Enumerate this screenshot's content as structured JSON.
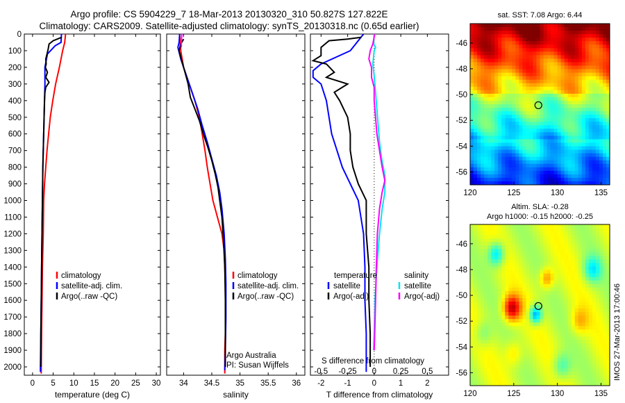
{
  "header": {
    "line1": "Argo profile: CS 5904229_7 18-Mar-2013 20130320_310 50.827S 127.822E",
    "line2": "Climatology: CARS2009. Satellite-adjusted climatology: synTS_20130318.nc (0.65d earlier)"
  },
  "side_text": "IMOS 27-Mar-2013 17:00:46",
  "colors": {
    "climatology": "#ff0000",
    "satellite": "#0000ff",
    "argo": "#000000",
    "sal_satellite": "#00e5ee",
    "sal_argo": "#ff00ff"
  },
  "chart_data": [
    {
      "type": "line",
      "xlabel": "temperature (deg C)",
      "ylabel": "",
      "xlim": [
        -2,
        31
      ],
      "ylim": [
        2050,
        0
      ],
      "xticks": [
        0,
        5,
        10,
        15,
        20,
        25,
        30
      ],
      "yticks": [
        0,
        100,
        200,
        300,
        400,
        500,
        600,
        700,
        800,
        900,
        1000,
        1100,
        1200,
        1300,
        1400,
        1500,
        1600,
        1700,
        1800,
        1900,
        2000
      ],
      "legend": [
        "climatology",
        "satellite-adj. clim.",
        "Argo(..raw -QC)"
      ],
      "series": [
        {
          "name": "climatology",
          "color": "#ff0000",
          "points": [
            [
              8.0,
              0
            ],
            [
              7.8,
              50
            ],
            [
              7.3,
              100
            ],
            [
              6.5,
              200
            ],
            [
              5.6,
              300
            ],
            [
              4.9,
              400
            ],
            [
              4.3,
              500
            ],
            [
              3.9,
              600
            ],
            [
              3.5,
              700
            ],
            [
              3.2,
              800
            ],
            [
              2.9,
              900
            ],
            [
              2.7,
              1000
            ],
            [
              2.6,
              1200
            ],
            [
              2.4,
              1400
            ],
            [
              2.3,
              1600
            ],
            [
              2.2,
              1800
            ],
            [
              2.1,
              2000
            ],
            [
              2.1,
              2040
            ]
          ]
        },
        {
          "name": "satellite-adj. clim.",
          "color": "#0000ff",
          "points": [
            [
              7.0,
              0
            ],
            [
              6.9,
              50
            ],
            [
              5.5,
              70
            ],
            [
              3.6,
              120
            ],
            [
              3.0,
              200
            ],
            [
              3.0,
              300
            ],
            [
              2.9,
              400
            ],
            [
              2.8,
              500
            ],
            [
              2.7,
              600
            ],
            [
              2.6,
              700
            ],
            [
              2.5,
              800
            ],
            [
              2.4,
              1000
            ],
            [
              2.3,
              1200
            ],
            [
              2.2,
              1400
            ],
            [
              2.1,
              1600
            ],
            [
              2.0,
              1800
            ],
            [
              1.9,
              2000
            ],
            [
              1.9,
              2030
            ]
          ]
        },
        {
          "name": "Argo(..raw -QC)",
          "color": "#000000",
          "points": [
            [
              7.0,
              20
            ],
            [
              5.0,
              40
            ],
            [
              4.0,
              60
            ],
            [
              3.8,
              90
            ],
            [
              3.5,
              120
            ],
            [
              3.2,
              150
            ],
            [
              3.3,
              180
            ],
            [
              3.1,
              200
            ],
            [
              3.6,
              230
            ],
            [
              3.2,
              260
            ],
            [
              4.0,
              290
            ],
            [
              3.2,
              320
            ],
            [
              3.0,
              350
            ],
            [
              2.9,
              400
            ],
            [
              2.8,
              500
            ],
            [
              2.7,
              600
            ],
            [
              2.6,
              700
            ],
            [
              2.5,
              800
            ],
            [
              2.4,
              1000
            ],
            [
              2.3,
              1200
            ],
            [
              2.2,
              1400
            ],
            [
              2.1,
              1600
            ],
            [
              2.0,
              1800
            ],
            [
              2.0,
              2000
            ]
          ]
        }
      ]
    },
    {
      "type": "line",
      "xlabel": "salinity",
      "ylabel": "",
      "xlim": [
        33.7,
        36.15
      ],
      "ylim": [
        2050,
        0
      ],
      "xticks": [
        34,
        34.5,
        35,
        35.5,
        36
      ],
      "legend": [
        "climatology",
        "satellite-adj. clim.",
        "Argo(..raw -QC)"
      ],
      "annotation": [
        "Argo Australia",
        "PI: Susan Wijffels"
      ],
      "series": [
        {
          "name": "climatology",
          "color": "#ff0000",
          "points": [
            [
              33.93,
              0
            ],
            [
              33.95,
              100
            ],
            [
              34.0,
              200
            ],
            [
              34.1,
              300
            ],
            [
              34.2,
              400
            ],
            [
              34.28,
              500
            ],
            [
              34.33,
              600
            ],
            [
              34.38,
              700
            ],
            [
              34.42,
              800
            ],
            [
              34.47,
              900
            ],
            [
              34.52,
              1000
            ],
            [
              34.6,
              1100
            ],
            [
              34.68,
              1200
            ],
            [
              34.72,
              1300
            ],
            [
              34.73,
              1400
            ],
            [
              34.74,
              1500
            ],
            [
              34.74,
              1600
            ],
            [
              34.74,
              1800
            ],
            [
              34.73,
              1900
            ],
            [
              34.73,
              2040
            ]
          ]
        },
        {
          "name": "satellite-adj. clim.",
          "color": "#0000ff",
          "points": [
            [
              33.93,
              0
            ],
            [
              33.92,
              50
            ],
            [
              33.9,
              80
            ],
            [
              33.95,
              150
            ],
            [
              34.05,
              250
            ],
            [
              34.15,
              350
            ],
            [
              34.25,
              450
            ],
            [
              34.33,
              550
            ],
            [
              34.42,
              650
            ],
            [
              34.5,
              750
            ],
            [
              34.58,
              850
            ],
            [
              34.64,
              950
            ],
            [
              34.68,
              1050
            ],
            [
              34.72,
              1200
            ],
            [
              34.74,
              1350
            ],
            [
              34.75,
              1500
            ],
            [
              34.75,
              1700
            ],
            [
              34.74,
              1900
            ],
            [
              34.73,
              2020
            ]
          ]
        },
        {
          "name": "Argo(..raw -QC)",
          "color": "#000000",
          "points": [
            [
              34.0,
              30
            ],
            [
              33.95,
              60
            ],
            [
              33.92,
              100
            ],
            [
              33.96,
              150
            ],
            [
              34.0,
              200
            ],
            [
              34.05,
              260
            ],
            [
              34.08,
              300
            ],
            [
              34.12,
              380
            ],
            [
              34.2,
              450
            ],
            [
              34.28,
              520
            ],
            [
              34.35,
              600
            ],
            [
              34.43,
              680
            ],
            [
              34.5,
              760
            ],
            [
              34.56,
              840
            ],
            [
              34.61,
              920
            ],
            [
              34.64,
              1000
            ],
            [
              34.68,
              1100
            ],
            [
              34.71,
              1250
            ],
            [
              34.73,
              1400
            ],
            [
              34.74,
              1600
            ],
            [
              34.74,
              1800
            ],
            [
              34.74,
              2000
            ]
          ]
        },
        {
          "name": "",
          "color": "#ff00ff",
          "points": [
            [
              33.97,
              0
            ],
            [
              33.96,
              50
            ],
            [
              33.96,
              80
            ]
          ]
        }
      ]
    },
    {
      "type": "line",
      "xlabel": "T difference from climatology",
      "x2label": "S difference from climatology",
      "xlim": [
        -2.4,
        2.8
      ],
      "ylim": [
        2050,
        0
      ],
      "xticks": [
        -2,
        -1,
        0,
        1,
        2
      ],
      "x2ticks": [
        -0.5,
        -0.25,
        0,
        0.25,
        0.5
      ],
      "legend_temperature": {
        "title": "temperature",
        "items": [
          "satellite",
          "Argo(-adj)"
        ]
      },
      "legend_salinity": {
        "title": "salinity",
        "items": [
          "satellite",
          "Argo(-adj)"
        ]
      },
      "series": [
        {
          "name": "satellite",
          "color": "#0000ff",
          "points": [
            [
              -0.4,
              0
            ],
            [
              -0.9,
              100
            ],
            [
              -2.0,
              180
            ],
            [
              -2.3,
              220
            ],
            [
              -2.3,
              260
            ],
            [
              -2.0,
              300
            ],
            [
              -1.8,
              400
            ],
            [
              -1.7,
              500
            ],
            [
              -1.6,
              600
            ],
            [
              -1.4,
              700
            ],
            [
              -1.2,
              800
            ],
            [
              -0.9,
              900
            ],
            [
              -0.6,
              1000
            ],
            [
              -0.5,
              1100
            ],
            [
              -0.4,
              1200
            ],
            [
              -0.35,
              1400
            ],
            [
              -0.35,
              1600
            ],
            [
              -0.3,
              1800
            ],
            [
              -0.3,
              2000
            ],
            [
              -0.3,
              2030
            ]
          ]
        },
        {
          "name": "Argo(-adj)",
          "color": "#000000",
          "points": [
            [
              -0.5,
              20
            ],
            [
              -1.0,
              30
            ],
            [
              -1.7,
              40
            ],
            [
              -2.0,
              80
            ],
            [
              -2.0,
              130
            ],
            [
              -2.3,
              160
            ],
            [
              -1.8,
              180
            ],
            [
              -1.5,
              230
            ],
            [
              -1.8,
              260
            ],
            [
              -1.0,
              300
            ],
            [
              -1.5,
              350
            ],
            [
              -1.3,
              400
            ],
            [
              -1.0,
              500
            ],
            [
              -0.9,
              600
            ],
            [
              -0.9,
              700
            ],
            [
              -0.8,
              800
            ],
            [
              -0.6,
              900
            ],
            [
              -0.3,
              1000
            ],
            [
              -0.3,
              1100
            ],
            [
              -0.3,
              1200
            ],
            [
              -0.2,
              1400
            ],
            [
              -0.2,
              1600
            ],
            [
              -0.15,
              1800
            ],
            [
              -0.15,
              2000
            ]
          ]
        },
        {
          "name": "salinity satellite",
          "color": "#00e5ee",
          "points": [
            [
              0.0,
              0
            ],
            [
              -0.02,
              60
            ],
            [
              0.05,
              80
            ],
            [
              0.0,
              100
            ],
            [
              -0.05,
              180
            ],
            [
              0.0,
              250
            ],
            [
              0.05,
              350
            ],
            [
              0.1,
              450
            ],
            [
              0.15,
              550
            ],
            [
              0.2,
              650
            ],
            [
              0.28,
              750
            ],
            [
              0.4,
              850
            ],
            [
              0.4,
              950
            ],
            [
              0.3,
              1050
            ],
            [
              0.2,
              1200
            ],
            [
              0.1,
              1400
            ],
            [
              0.03,
              1600
            ],
            [
              0.0,
              1800
            ],
            [
              -0.02,
              1900
            ]
          ]
        },
        {
          "name": "salinity Argo(-adj)",
          "color": "#ff00ff",
          "points": [
            [
              0.02,
              0
            ],
            [
              -0.05,
              60
            ],
            [
              -0.15,
              100
            ],
            [
              -0.2,
              150
            ],
            [
              -0.1,
              200
            ],
            [
              -0.1,
              260
            ],
            [
              0.0,
              320
            ],
            [
              0.0,
              400
            ],
            [
              0.05,
              500
            ],
            [
              0.1,
              600
            ],
            [
              0.2,
              700
            ],
            [
              0.3,
              800
            ],
            [
              0.4,
              880
            ],
            [
              0.3,
              950
            ],
            [
              0.2,
              1050
            ],
            [
              0.12,
              1200
            ],
            [
              0.08,
              1400
            ],
            [
              0.05,
              1600
            ],
            [
              0.02,
              1800
            ],
            [
              0.0,
              1900
            ]
          ]
        }
      ]
    },
    {
      "type": "heatmap",
      "title": "sat. SST: 7.08 Argo: 6.44",
      "xlim": [
        120,
        136
      ],
      "ylim": [
        -57,
        -44.5
      ],
      "xticks": [
        120,
        125,
        130,
        135
      ],
      "yticks": [
        -46,
        -48,
        -50,
        -52,
        -54,
        -56
      ],
      "marker": {
        "lon": 127.822,
        "lat": -50.827
      },
      "colormap": "jet-like, red = warm north, blue = cold south"
    },
    {
      "type": "heatmap",
      "title": "Altim. SLA: -0.28",
      "subtitle": "Argo h1000: -0.15 h2000: -0.25",
      "xlim": [
        120,
        136
      ],
      "ylim": [
        -57,
        -44.5
      ],
      "xticks": [
        120,
        125,
        130,
        135
      ],
      "yticks": [
        -46,
        -48,
        -50,
        -52,
        -54,
        -56
      ],
      "marker": {
        "lon": 127.822,
        "lat": -50.827
      },
      "colormap": "jet-like, mostly green with yellow/red highs and cyan/blue lows"
    }
  ]
}
